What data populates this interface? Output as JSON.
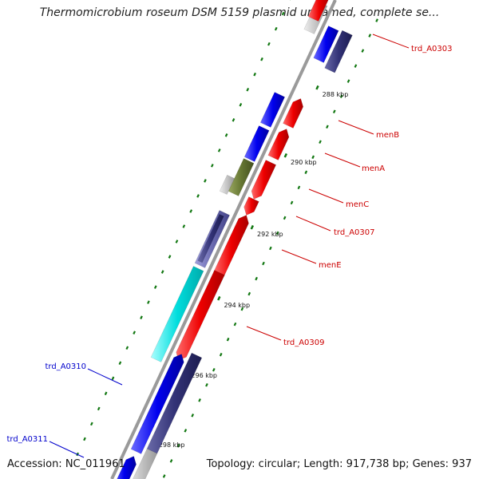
{
  "title": "Thermomicrobium roseum DSM 5159 plasmid unnamed, complete se...",
  "footer": {
    "accession": "Accession: NC_011961",
    "summary": "Topology: circular; Length: 917,738 bp; Genes: 937"
  },
  "ticks": [
    "288 kbp",
    "290 kbp",
    "292 kbp",
    "294 kbp",
    "296 kbp",
    "298 kbp"
  ],
  "genes": [
    {
      "label": "trd_A0303",
      "color": "#cc0000"
    },
    {
      "label": "menB",
      "color": "#cc0000"
    },
    {
      "label": "menA",
      "color": "#cc0000"
    },
    {
      "label": "menC",
      "color": "#cc0000"
    },
    {
      "label": "trd_A0307",
      "color": "#cc0000"
    },
    {
      "label": "menE",
      "color": "#cc0000"
    },
    {
      "label": "trd_A0309",
      "color": "#cc0000"
    },
    {
      "label": "trd_A0310",
      "color": "#0000cc"
    },
    {
      "label": "trd_A0311",
      "color": "#0000cc"
    }
  ],
  "colors": {
    "forward_cds": "#ee0000",
    "reverse_cds": "#0000ee",
    "cog_navy": "#333377",
    "cog_olive": "#667733",
    "cog_cyan": "#00dddd",
    "cog_lavender": "#6a6ab0",
    "backbone": "#9a9a9a",
    "gc_dots": "#117711"
  }
}
